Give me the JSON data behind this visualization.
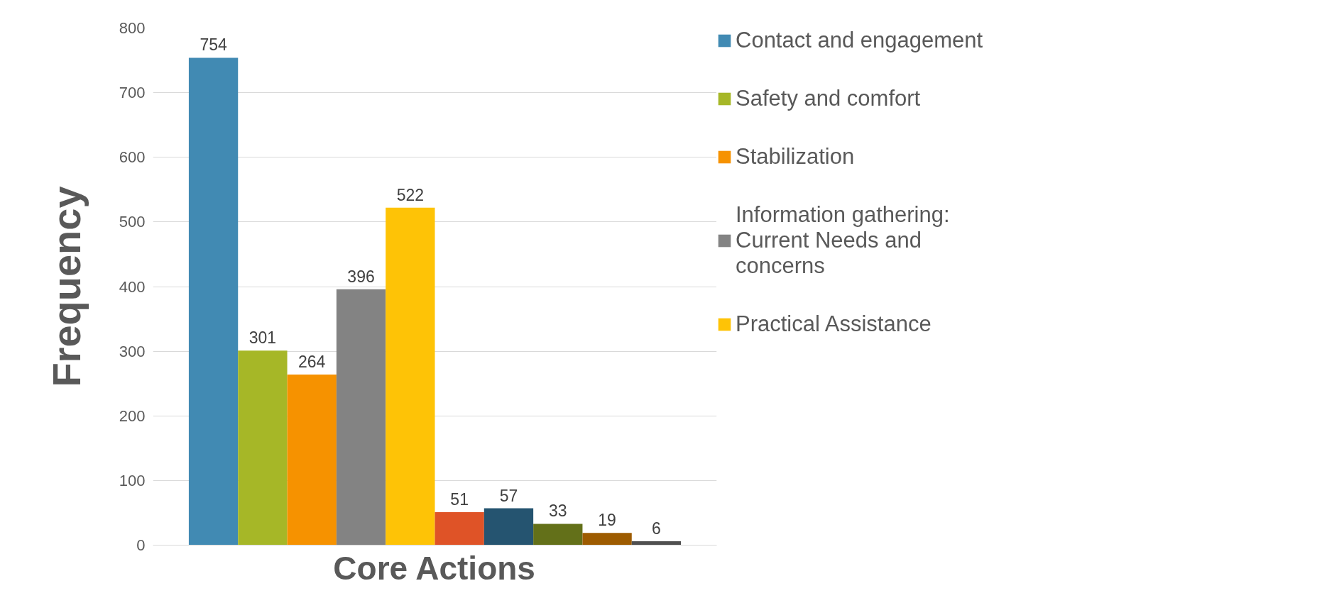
{
  "chart_data": {
    "type": "bar",
    "xlabel": "Core Actions",
    "ylabel": "Frequency",
    "categories": [
      null
    ],
    "series": [
      {
        "name": "Contact and engagement",
        "color": "#418ab3",
        "values": [
          754
        ]
      },
      {
        "name": "Safety and comfort",
        "color": "#a6b727",
        "values": [
          301
        ]
      },
      {
        "name": "Stabilization",
        "color": "#f69200",
        "values": [
          264
        ]
      },
      {
        "name": "Information gathering: Current Needs and concerns",
        "color": "#838383",
        "values": [
          396
        ]
      },
      {
        "name": "Practical Assistance",
        "color": "#fec306",
        "values": [
          522
        ]
      },
      {
        "color": "#df5327",
        "values": [
          51
        ]
      },
      {
        "color": "#255470",
        "values": [
          57
        ]
      },
      {
        "color": "#637019",
        "values": [
          33
        ]
      },
      {
        "color": "#9d5b00",
        "values": [
          19
        ]
      },
      {
        "color": "#4f4f4f",
        "values": [
          6
        ]
      }
    ],
    "ylim": [
      0,
      800
    ],
    "yticks": [
      0,
      100,
      200,
      300,
      400,
      500,
      600,
      700,
      800
    ],
    "grid": "y",
    "legend": "right",
    "data_labels": true
  }
}
